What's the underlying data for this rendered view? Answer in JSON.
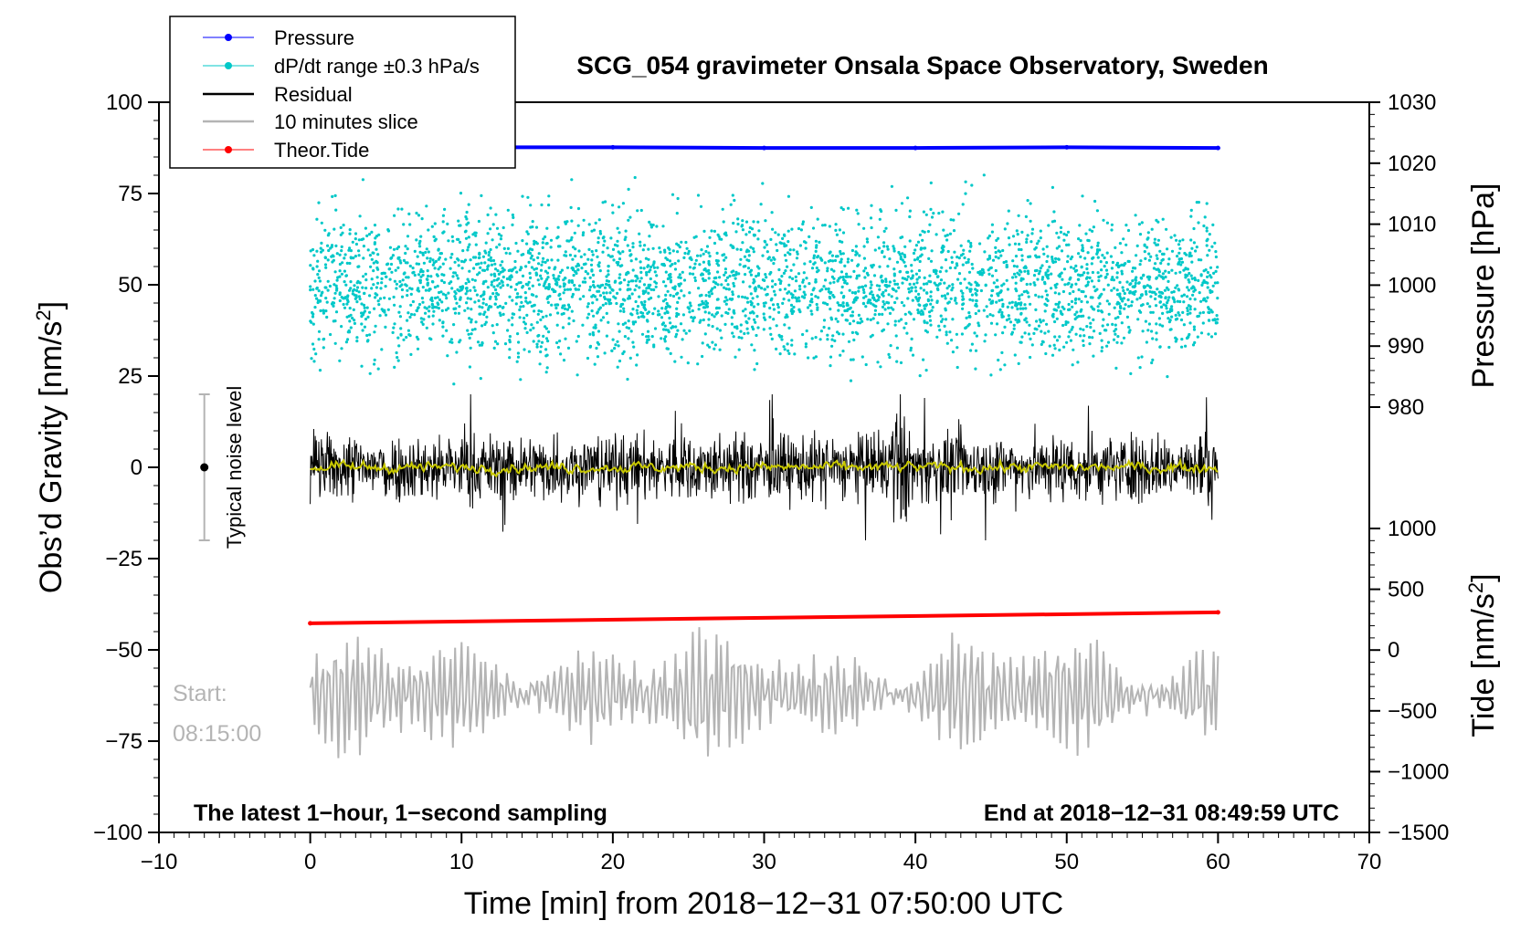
{
  "chart_data": {
    "type": "line",
    "title": "SCG_054 gravimeter Onsala Space Observatory, Sweden",
    "xlabel": "Time [min] from 2018−12−31 07:50:00 UTC",
    "ylabel_left_main": "Obs’d Gravity [nm/s",
    "ylabel_left_sup": "2",
    "ylabel_left_end": "]",
    "ylabel_pressure": "Pressure [hPa]",
    "ylabel_tide_main": "Tide [nm/s",
    "ylabel_tide_sup": "2",
    "ylabel_tide_end": "]",
    "xlim": [
      -10,
      70
    ],
    "ylim": [
      -100,
      100
    ],
    "pressure_lim": [
      980,
      1030
    ],
    "tide_lim": [
      -1500,
      1000
    ],
    "x_ticks": [
      "−10",
      "0",
      "10",
      "20",
      "30",
      "40",
      "50",
      "60",
      "70"
    ],
    "x_tick_values": [
      -10,
      0,
      10,
      20,
      30,
      40,
      50,
      60,
      70
    ],
    "y_ticks": [
      "100",
      "75",
      "50",
      "25",
      "0",
      "−25",
      "−50",
      "−75",
      "−100"
    ],
    "y_tick_values": [
      100,
      75,
      50,
      25,
      0,
      -25,
      -50,
      -75,
      -100
    ],
    "pressure_ticks": [
      "1030",
      "1020",
      "1010",
      "1000",
      "990",
      "980"
    ],
    "pressure_tick_values": [
      1030,
      1020,
      1010,
      1000,
      990,
      980
    ],
    "tide_ticks": [
      "1000",
      "500",
      "0",
      "−500",
      "−1000",
      "−1500"
    ],
    "tide_tick_values": [
      1000,
      500,
      0,
      -500,
      -1000,
      -1500
    ],
    "legend": [
      {
        "label": "Pressure",
        "color": "#0000ff",
        "marker": "dot"
      },
      {
        "label": "dP/dt range ±0.3 hPa/s",
        "color": "#00c8c8",
        "marker": "dot"
      },
      {
        "label": "Residual",
        "color": "#000000",
        "marker": "line"
      },
      {
        "label": "10 minutes slice",
        "color": "#b4b4b4",
        "marker": "line"
      },
      {
        "label": "Theor.Tide",
        "color": "#ff0000",
        "marker": "dot"
      }
    ],
    "series": [
      {
        "name": "Pressure",
        "axis": "pressure",
        "x": [
          0,
          10,
          20,
          30,
          40,
          50,
          60
        ],
        "values": [
          1022.6,
          1022.6,
          1022.6,
          1022.5,
          1022.5,
          1022.6,
          1022.5
        ]
      },
      {
        "name": "Theor.Tide",
        "axis": "tide",
        "x": [
          0,
          60
        ],
        "values": [
          220,
          310
        ]
      },
      {
        "name": "Residual",
        "axis": "gravity",
        "x_range": [
          0,
          60
        ],
        "center": 0,
        "amplitude_typical": 12,
        "amplitude_max": 20
      },
      {
        "name": "Residual smoothed",
        "axis": "gravity",
        "x_range": [
          0,
          60
        ],
        "center": 0,
        "color": "#c8c800"
      },
      {
        "name": "dP/dt range ±0.3 hPa/s",
        "axis": "gravity",
        "x_range": [
          0,
          60
        ],
        "center": 50,
        "spread_min": 15,
        "spread_max": 100
      },
      {
        "name": "10 minutes slice",
        "axis": "gravity",
        "x_range": [
          0,
          60
        ],
        "center": -62,
        "amplitude": 14
      }
    ],
    "noise_bar": {
      "x": -7,
      "center": 0,
      "low": -20,
      "high": 20,
      "label": "Typical noise level"
    },
    "annotations": {
      "start_label": "Start:",
      "start_time": "08:15:00",
      "bottom_left": "The latest 1−hour, 1−second sampling",
      "bottom_right": "End at 2018−12−31 08:49:59 UTC"
    },
    "colors": {
      "pressure": "#0000ff",
      "dpdt": "#00c8c8",
      "residual": "#000000",
      "smoothed": "#c8c800",
      "slice": "#b4b4b4",
      "tide": "#ff0000",
      "noise_bar": "#b4b4b4",
      "text_muted": "#b4b4b4"
    }
  }
}
